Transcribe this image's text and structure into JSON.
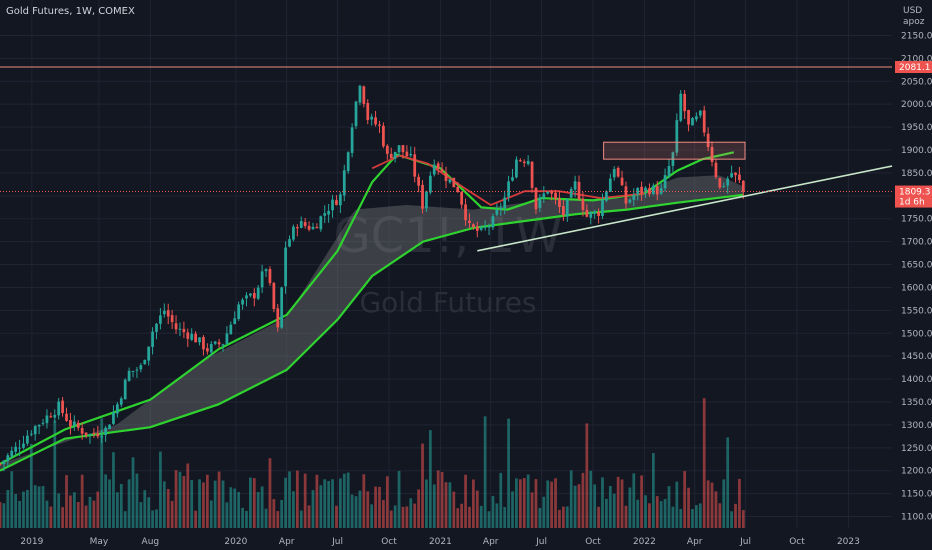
{
  "header": {
    "title": "Gold Futures, 1W, COMEX"
  },
  "watermark": {
    "symbol": "GC1!, 1W",
    "name": "Gold Futures"
  },
  "colors": {
    "background": "#131722",
    "grid": "#1f2433",
    "up": "#26a69a",
    "down": "#ef5350",
    "ma_fast": "#2fd32f",
    "ma_slow": "#2fd32f",
    "ma_alt": "#d63a3a",
    "band_fill": "#8a8a8a",
    "trendline": "#c8e6c9",
    "resistance": "#f28b82",
    "box": "#f28b82"
  },
  "chart_data": {
    "type": "candlestick",
    "title": "Gold Futures, 1W, COMEX",
    "y_unit_labels": [
      "USD",
      "apoz"
    ],
    "ylim": [
      1075,
      2175
    ],
    "y_ticks": [
      1100,
      1150,
      1200,
      1250,
      1300,
      1350,
      1400,
      1450,
      1500,
      1550,
      1600,
      1650,
      1700,
      1750,
      1800,
      1850,
      1900,
      1950,
      2000,
      2050,
      2100,
      2150
    ],
    "x_tick_labels": [
      {
        "label": "2019",
        "date": "2019-01-01"
      },
      {
        "label": "May",
        "date": "2019-05-01"
      },
      {
        "label": "Aug",
        "date": "2019-08-01"
      },
      {
        "label": "2020",
        "date": "2020-01-01"
      },
      {
        "label": "Apr",
        "date": "2020-04-01"
      },
      {
        "label": "Jul",
        "date": "2020-07-01"
      },
      {
        "label": "Oct",
        "date": "2020-10-01"
      },
      {
        "label": "2021",
        "date": "2021-01-01"
      },
      {
        "label": "Apr",
        "date": "2021-04-01"
      },
      {
        "label": "Jul",
        "date": "2021-07-01"
      },
      {
        "label": "Oct",
        "date": "2021-10-01"
      },
      {
        "label": "2022",
        "date": "2022-01-01"
      },
      {
        "label": "Apr",
        "date": "2022-04-01"
      },
      {
        "label": "Jul",
        "date": "2022-07-01"
      },
      {
        "label": "Oct",
        "date": "2022-10-01"
      },
      {
        "label": "2023",
        "date": "2023-01-01"
      }
    ],
    "x_range": [
      "2018-11-05",
      "2023-03-20"
    ],
    "price_points": [
      [
        "2018-11-05",
        1215
      ],
      [
        "2018-12-03",
        1248
      ],
      [
        "2019-01-01",
        1290
      ],
      [
        "2019-02-18",
        1340
      ],
      [
        "2019-03-11",
        1302
      ],
      [
        "2019-04-15",
        1278
      ],
      [
        "2019-05-13",
        1290
      ],
      [
        "2019-06-03",
        1345
      ],
      [
        "2019-06-24",
        1415
      ],
      [
        "2019-07-15",
        1425
      ],
      [
        "2019-08-05",
        1505
      ],
      [
        "2019-08-26",
        1550
      ],
      [
        "2019-09-16",
        1510
      ],
      [
        "2019-10-14",
        1495
      ],
      [
        "2019-11-11",
        1465
      ],
      [
        "2019-12-09",
        1480
      ],
      [
        "2020-01-06",
        1562
      ],
      [
        "2020-02-03",
        1585
      ],
      [
        "2020-02-24",
        1645
      ],
      [
        "2020-03-16",
        1505
      ],
      [
        "2020-03-30",
        1690
      ],
      [
        "2020-04-20",
        1740
      ],
      [
        "2020-05-18",
        1730
      ],
      [
        "2020-06-15",
        1775
      ],
      [
        "2020-07-06",
        1800
      ],
      [
        "2020-07-27",
        1960
      ],
      [
        "2020-08-10",
        2050
      ],
      [
        "2020-08-24",
        1970
      ],
      [
        "2020-09-14",
        1950
      ],
      [
        "2020-09-28",
        1885
      ],
      [
        "2020-10-19",
        1905
      ],
      [
        "2020-11-09",
        1880
      ],
      [
        "2020-11-30",
        1780
      ],
      [
        "2020-12-21",
        1880
      ],
      [
        "2021-01-04",
        1850
      ],
      [
        "2021-02-01",
        1815
      ],
      [
        "2021-02-22",
        1730
      ],
      [
        "2021-03-15",
        1720
      ],
      [
        "2021-04-05",
        1745
      ],
      [
        "2021-04-26",
        1795
      ],
      [
        "2021-05-17",
        1880
      ],
      [
        "2021-06-07",
        1880
      ],
      [
        "2021-06-21",
        1775
      ],
      [
        "2021-07-12",
        1815
      ],
      [
        "2021-08-09",
        1760
      ],
      [
        "2021-08-30",
        1825
      ],
      [
        "2021-09-20",
        1755
      ],
      [
        "2021-10-11",
        1765
      ],
      [
        "2021-11-08",
        1865
      ],
      [
        "2021-11-29",
        1785
      ],
      [
        "2021-12-20",
        1810
      ],
      [
        "2022-01-10",
        1815
      ],
      [
        "2022-01-31",
        1810
      ],
      [
        "2022-02-21",
        1890
      ],
      [
        "2022-03-07",
        2020
      ],
      [
        "2022-03-21",
        1950
      ],
      [
        "2022-04-11",
        1975
      ],
      [
        "2022-05-02",
        1880
      ],
      [
        "2022-05-16",
        1815
      ],
      [
        "2022-06-06",
        1850
      ],
      [
        "2022-06-20",
        1830
      ],
      [
        "2022-06-27",
        1809.3
      ]
    ],
    "all_time_high_line": 2081.1,
    "current_price": 1809.3,
    "countdown": "1d 6h",
    "volume_ylim": [
      0,
      3.2
    ],
    "moving_averages": [
      {
        "points": [
          [
            "2018-11-05",
            1215
          ],
          [
            "2019-03-01",
            1290
          ],
          [
            "2019-08-01",
            1355
          ],
          [
            "2019-12-01",
            1465
          ],
          [
            "2020-04-01",
            1540
          ],
          [
            "2020-07-01",
            1680
          ],
          [
            "2020-09-01",
            1830
          ],
          [
            "2020-10-15",
            1890
          ],
          [
            "2021-01-01",
            1860
          ],
          [
            "2021-03-15",
            1775
          ],
          [
            "2021-05-01",
            1770
          ],
          [
            "2021-07-01",
            1795
          ],
          [
            "2021-10-01",
            1790
          ],
          [
            "2022-01-01",
            1805
          ],
          [
            "2022-03-01",
            1855
          ],
          [
            "2022-04-15",
            1880
          ],
          [
            "2022-06-10",
            1895
          ]
        ]
      },
      {
        "points": [
          [
            "2018-11-05",
            1200
          ],
          [
            "2019-03-01",
            1270
          ],
          [
            "2019-08-01",
            1295
          ],
          [
            "2019-12-01",
            1345
          ],
          [
            "2020-04-01",
            1420
          ],
          [
            "2020-07-01",
            1530
          ],
          [
            "2020-09-01",
            1625
          ],
          [
            "2020-12-01",
            1700
          ],
          [
            "2021-03-01",
            1730
          ],
          [
            "2021-06-01",
            1745
          ],
          [
            "2021-09-01",
            1760
          ],
          [
            "2021-12-01",
            1770
          ],
          [
            "2022-03-01",
            1785
          ],
          [
            "2022-06-27",
            1802
          ]
        ]
      },
      {
        "points": [
          [
            "2020-09-01",
            1860
          ],
          [
            "2020-10-20",
            1888
          ],
          [
            "2020-12-10",
            1870
          ],
          [
            "2021-02-15",
            1815
          ],
          [
            "2021-04-01",
            1780
          ],
          [
            "2021-06-01",
            1810
          ],
          [
            "2021-08-01",
            1810
          ],
          [
            "2021-10-15",
            1795
          ],
          [
            "2022-01-01",
            1805
          ]
        ]
      }
    ],
    "upper_ma_for_band": [
      [
        "2018-11-05",
        1215
      ],
      [
        "2019-06-01",
        1300
      ],
      [
        "2019-11-01",
        1440
      ],
      [
        "2020-04-01",
        1535
      ],
      [
        "2020-08-01",
        1770
      ],
      [
        "2020-11-01",
        1780
      ],
      [
        "2021-03-01",
        1770
      ],
      [
        "2021-07-01",
        1790
      ],
      [
        "2021-12-01",
        1795
      ],
      [
        "2022-03-01",
        1840
      ],
      [
        "2022-05-15",
        1845
      ],
      [
        "2022-06-27",
        1820
      ]
    ],
    "support_trendline": [
      [
        "2021-03-08",
        1680
      ],
      [
        "2023-03-20",
        1865
      ]
    ],
    "resistance_box": {
      "x": [
        "2021-10-20",
        "2022-06-30"
      ],
      "y": [
        1880,
        1917
      ]
    }
  }
}
